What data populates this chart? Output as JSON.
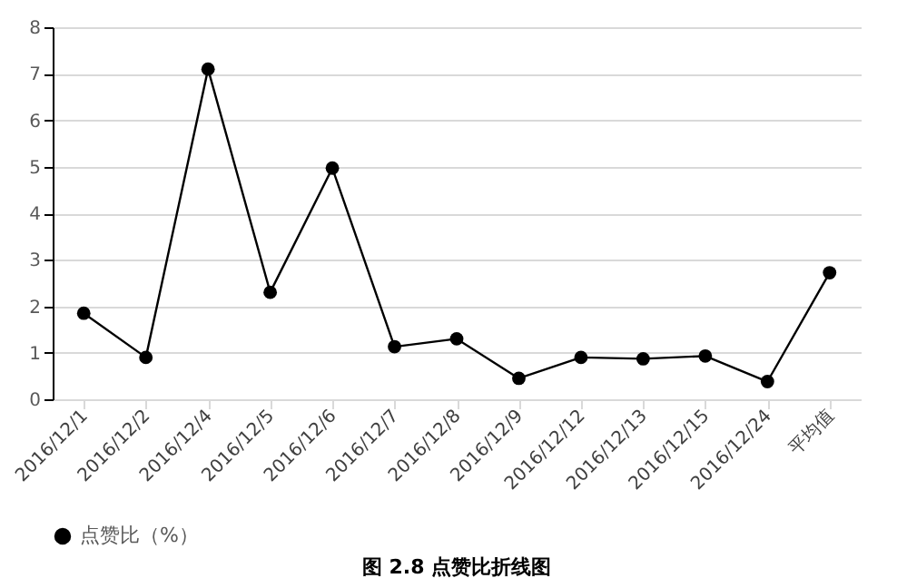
{
  "chart_data": {
    "type": "line",
    "categories": [
      "2016/12/1",
      "2016/12/2",
      "2016/12/4",
      "2016/12/5",
      "2016/12/6",
      "2016/12/7",
      "2016/12/8",
      "2016/12/9",
      "2016/12/12",
      "2016/12/13",
      "2016/12/15",
      "2016/12/24",
      "平均值"
    ],
    "series": [
      {
        "name": "点赞比（%）",
        "color": "#000000",
        "values": [
          1.85,
          0.9,
          7.1,
          2.3,
          4.97,
          1.13,
          1.3,
          0.45,
          0.9,
          0.87,
          0.93,
          0.38,
          2.72
        ]
      }
    ],
    "ylim": [
      0,
      8
    ],
    "yticks": [
      0,
      1,
      2,
      3,
      4,
      5,
      6,
      7,
      8
    ],
    "grid": "y",
    "legend": "bottom",
    "marker": "circle",
    "line_style": "solid",
    "annotations": [
      "图 2.8  点赞比折线图"
    ]
  }
}
